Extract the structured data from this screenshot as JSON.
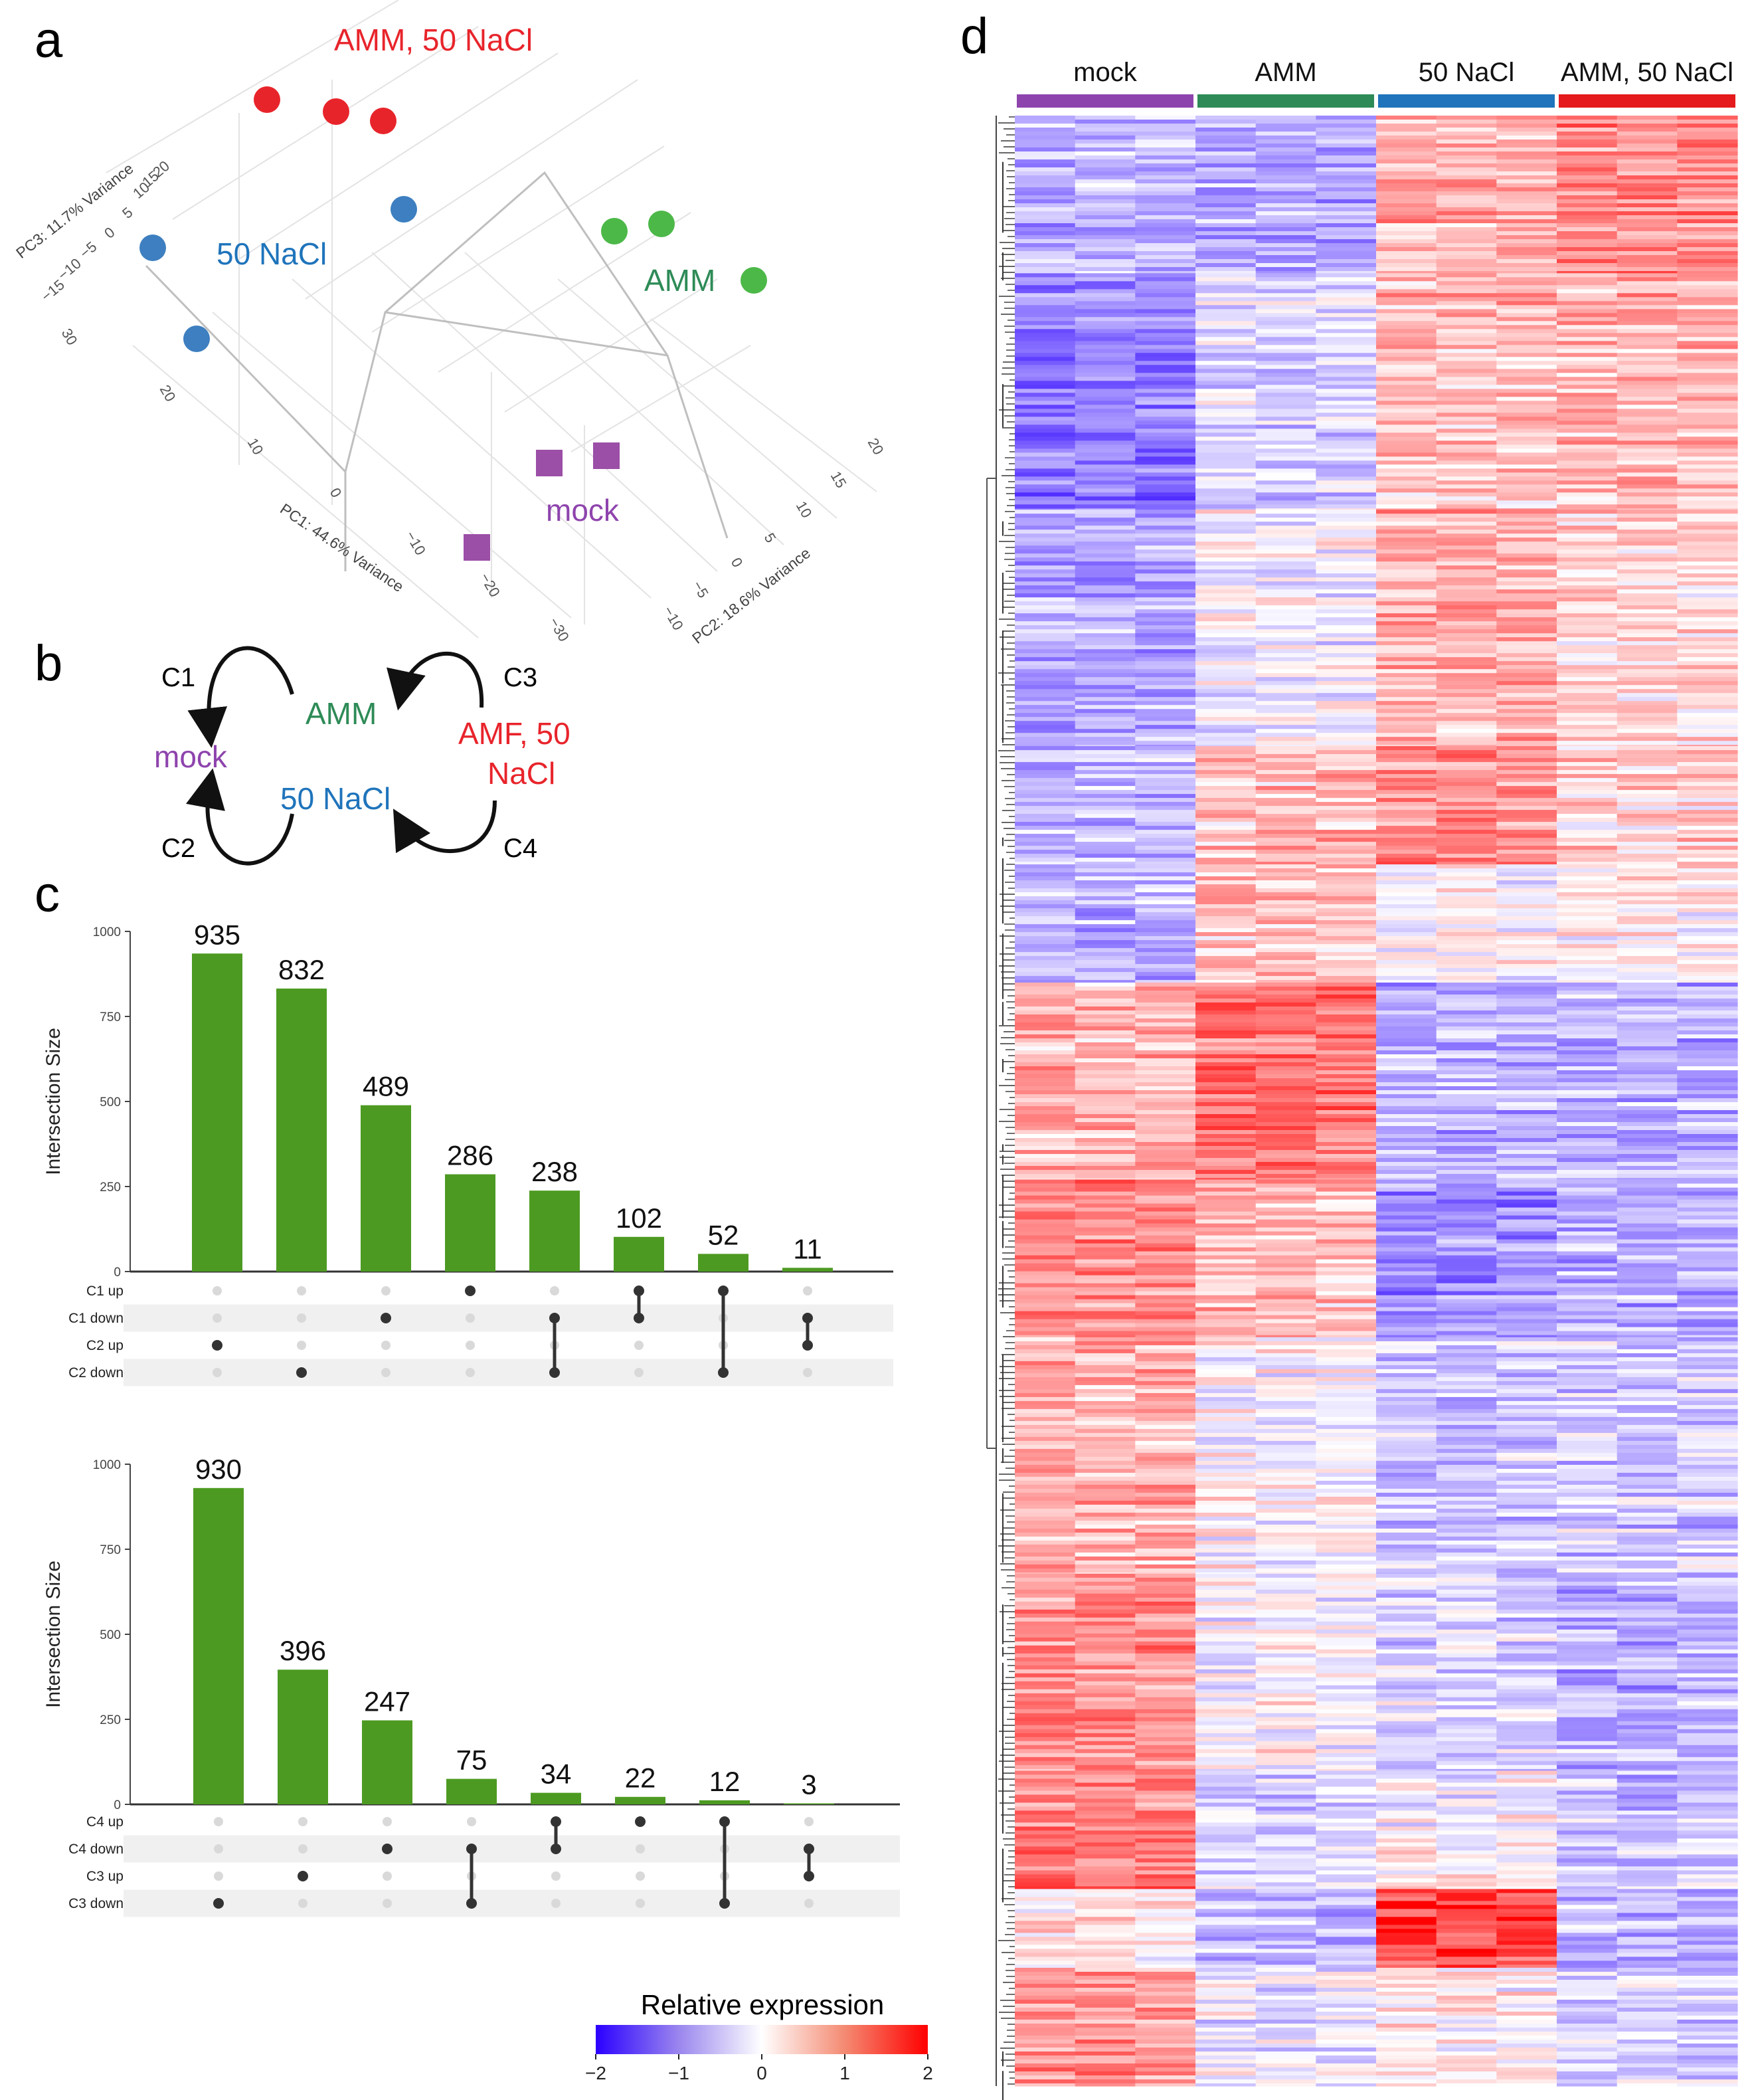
{
  "panels": {
    "a": "a",
    "b": "b",
    "c": "c",
    "d": "d"
  },
  "colors": {
    "mock": "#8e44ad",
    "amm": "#2e8b57",
    "nacl": "#1f74bb",
    "both": "#e41a1c",
    "bar": "#4d9a22",
    "pca_nacl": "#3d7fc0",
    "pca_amm": "#4cb848",
    "pca_both": "#e8242b",
    "pca_mock": "#9b4fa6"
  },
  "pca": {
    "labels": {
      "amm_nacl": "AMM, 50 NaCl",
      "nacl": "50 NaCl",
      "amm": "AMM",
      "mock": "mock"
    },
    "axis_titles": {
      "pc1": "PC1: 44.6% Variance",
      "pc2": "PC2: 18.6% Variance",
      "pc3": "PC3: 11.7% Variance"
    },
    "pc1_ticks": [
      "30",
      "20",
      "10",
      "0",
      "−10",
      "−20",
      "−30"
    ],
    "pc2_ticks": [
      "−10",
      "−5",
      "0",
      "5",
      "10",
      "15",
      "20"
    ],
    "pc3_ticks": [
      "−15",
      "−10",
      "−5",
      "0",
      "5",
      "10",
      "15",
      "20"
    ]
  },
  "scheme": {
    "nodes": {
      "amm": "AMM",
      "mock": "mock",
      "nacl": "50 NaCl",
      "amf1": "AMF, 50",
      "amf2": "NaCl"
    },
    "edges": {
      "c1": "C1",
      "c2": "C2",
      "c3": "C3",
      "c4": "C4"
    }
  },
  "chart_data": [
    {
      "type": "bar",
      "title": "",
      "ylabel": "Intersection Size",
      "ylim": [
        0,
        1000
      ],
      "yticks": [
        "0",
        "250",
        "500",
        "750",
        "1000"
      ],
      "values": [
        935,
        832,
        489,
        286,
        238,
        102,
        52,
        11
      ],
      "value_labels": [
        "935",
        "832",
        "489",
        "286",
        "238",
        "102",
        "52",
        "11"
      ],
      "sets": [
        "C1 up",
        "C1 down",
        "C2 up",
        "C2 down"
      ],
      "matrix": [
        [
          2
        ],
        [
          3
        ],
        [
          1
        ],
        [
          0
        ],
        [
          1,
          3
        ],
        [
          0,
          1
        ],
        [
          0,
          3
        ],
        [
          1,
          2
        ]
      ]
    },
    {
      "type": "bar",
      "title": "",
      "ylabel": "Intersection Size",
      "ylim": [
        0,
        1000
      ],
      "yticks": [
        "0",
        "250",
        "500",
        "750",
        "1000"
      ],
      "values": [
        930,
        396,
        247,
        75,
        34,
        22,
        12,
        3
      ],
      "value_labels": [
        "930",
        "396",
        "247",
        "75",
        "34",
        "22",
        "12",
        "3"
      ],
      "sets": [
        "C4 up",
        "C4 down",
        "C3 up",
        "C3 down"
      ],
      "matrix": [
        [
          3
        ],
        [
          2
        ],
        [
          1
        ],
        [
          1,
          3
        ],
        [
          0,
          1
        ],
        [
          0
        ],
        [
          0,
          3
        ],
        [
          1,
          2
        ]
      ]
    },
    {
      "type": "heatmap",
      "groups": [
        "mock",
        "AMM",
        "50 NaCl",
        "AMM, 50 NaCl"
      ],
      "columns_per_group": 3,
      "legend_title": "Relative expression",
      "scale_ticks": [
        "−2",
        "−1",
        "0",
        "1",
        "2"
      ],
      "scale_range": [
        -2,
        2
      ],
      "blocks": [
        {
          "rows": 0.08,
          "means": [
            -0.6,
            -0.7,
            0.6,
            0.9
          ]
        },
        {
          "rows": 0.12,
          "means": [
            -1.0,
            -0.3,
            0.5,
            0.6
          ]
        },
        {
          "rows": 0.12,
          "means": [
            -0.7,
            -0.1,
            0.6,
            0.3
          ]
        },
        {
          "rows": 0.06,
          "means": [
            -0.6,
            0.5,
            0.9,
            0.3
          ]
        },
        {
          "rows": 0.06,
          "means": [
            -0.6,
            0.4,
            0.0,
            0.1
          ]
        },
        {
          "rows": 0.1,
          "means": [
            0.6,
            1.1,
            -0.6,
            -0.6
          ]
        },
        {
          "rows": 0.08,
          "means": [
            0.9,
            0.5,
            -0.9,
            -0.6
          ]
        },
        {
          "rows": 0.12,
          "means": [
            0.6,
            0.0,
            -0.4,
            -0.4
          ]
        },
        {
          "rows": 0.1,
          "means": [
            0.9,
            0.0,
            -0.3,
            -0.6
          ]
        },
        {
          "rows": 0.06,
          "means": [
            1.0,
            -0.3,
            0.0,
            -0.5
          ]
        },
        {
          "rows": 0.04,
          "means": [
            0.2,
            -0.5,
            1.5,
            -0.6
          ]
        },
        {
          "rows": 0.06,
          "means": [
            0.8,
            -0.2,
            0.1,
            -0.4
          ]
        }
      ]
    }
  ]
}
